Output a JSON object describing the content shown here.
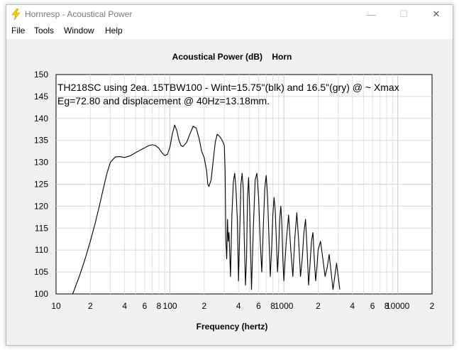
{
  "window": {
    "title": "Hornresp - Acoustical Power",
    "controls": {
      "minimize": "—",
      "maximize": "☐",
      "close": "✕"
    }
  },
  "menu": [
    {
      "label": "File"
    },
    {
      "label": "Tools"
    },
    {
      "label": "Window"
    },
    {
      "label": "Help"
    }
  ],
  "chart_data": {
    "type": "line",
    "title": "Acoustical Power (dB)    Horn",
    "xlabel": "Frequency (hertz)",
    "ylabel": "",
    "xscale": "log",
    "xlim": [
      10,
      20000
    ],
    "ylim": [
      100,
      150
    ],
    "yticks": [
      100,
      105,
      110,
      115,
      120,
      125,
      130,
      135,
      140,
      145,
      150
    ],
    "xtick_labels": [
      {
        "x": 10,
        "label": "10"
      },
      {
        "x": 20,
        "label": "2"
      },
      {
        "x": 40,
        "label": "4"
      },
      {
        "x": 60,
        "label": "6"
      },
      {
        "x": 80,
        "label": "8"
      },
      {
        "x": 100,
        "label": "100"
      },
      {
        "x": 200,
        "label": "2"
      },
      {
        "x": 400,
        "label": "4"
      },
      {
        "x": 600,
        "label": "6"
      },
      {
        "x": 800,
        "label": "8"
      },
      {
        "x": 1000,
        "label": "1000"
      },
      {
        "x": 2000,
        "label": "2"
      },
      {
        "x": 4000,
        "label": "4"
      },
      {
        "x": 6000,
        "label": "6"
      },
      {
        "x": 8000,
        "label": "8"
      },
      {
        "x": 10000,
        "label": "10000"
      },
      {
        "x": 20000,
        "label": "2"
      }
    ],
    "grid": true,
    "annotation": [
      "TH218SC using 2ea. 15TBW100 - Wint=15.75\"(blk) and 16.5\"(gry) @ ~ Xmax",
      "Eg=72.80 and displacement @ 40Hz=13.18mm."
    ],
    "series": [
      {
        "color": "#000000",
        "x": [
          14,
          16,
          18,
          20,
          22,
          24,
          26,
          28,
          30,
          33,
          36,
          40,
          45,
          50,
          55,
          60,
          65,
          70,
          75,
          80,
          85,
          90,
          95,
          100,
          105,
          110,
          115,
          120,
          125,
          130,
          140,
          150,
          160,
          170,
          180,
          190,
          200,
          210,
          215,
          220,
          230,
          240,
          250,
          260,
          270,
          280,
          290,
          300,
          305,
          310,
          315,
          320,
          325,
          330,
          340,
          350,
          360,
          370,
          380,
          390,
          400,
          410,
          420,
          430,
          440,
          450,
          460,
          470,
          480,
          490,
          500,
          520,
          540,
          560,
          580,
          600,
          620,
          640,
          660,
          680,
          700,
          720,
          740,
          760,
          780,
          800,
          820,
          840,
          860,
          880,
          900,
          920,
          940,
          960,
          980,
          1000,
          1050,
          1100,
          1150,
          1200,
          1250,
          1300,
          1350,
          1400,
          1450,
          1500,
          1550,
          1600,
          1650,
          1700,
          1750,
          1800,
          1850,
          1900,
          1950,
          2000,
          2100,
          2200,
          2300,
          2400,
          2500,
          2600,
          2700,
          2800,
          2900,
          3000,
          3100
        ],
        "y": [
          100,
          104,
          108,
          112,
          116,
          120,
          124,
          127.5,
          130,
          131.2,
          131.3,
          131.1,
          131.5,
          132.2,
          132.8,
          133.3,
          133.8,
          134,
          133.8,
          133.2,
          132.2,
          131.5,
          131.8,
          133.5,
          136.5,
          138.5,
          137.2,
          135,
          133.8,
          133.6,
          134.5,
          136.5,
          138.2,
          137.8,
          135.5,
          132.5,
          131,
          128,
          125,
          124.5,
          126,
          130.5,
          134.5,
          136.4,
          136,
          135.5,
          134.8,
          133.8,
          128,
          112,
          108,
          117,
          112,
          114,
          104,
          118,
          125.5,
          127.5,
          124,
          117,
          103,
          114,
          125,
          127.5,
          124,
          112,
          102,
          108,
          122,
          126.5,
          120,
          101,
          115,
          126,
          127.5,
          122,
          112,
          105,
          115,
          124,
          127,
          122,
          113,
          104,
          110,
          118,
          122,
          119,
          112,
          105,
          110,
          117,
          120,
          116,
          108,
          103,
          112,
          118,
          110,
          104,
          113,
          118.5,
          112,
          104,
          108,
          114,
          117,
          110,
          102,
          107,
          112,
          114,
          108,
          103,
          106,
          110,
          112,
          108,
          104,
          106,
          109,
          105,
          101,
          104,
          107,
          104,
          101
        ]
      }
    ]
  }
}
